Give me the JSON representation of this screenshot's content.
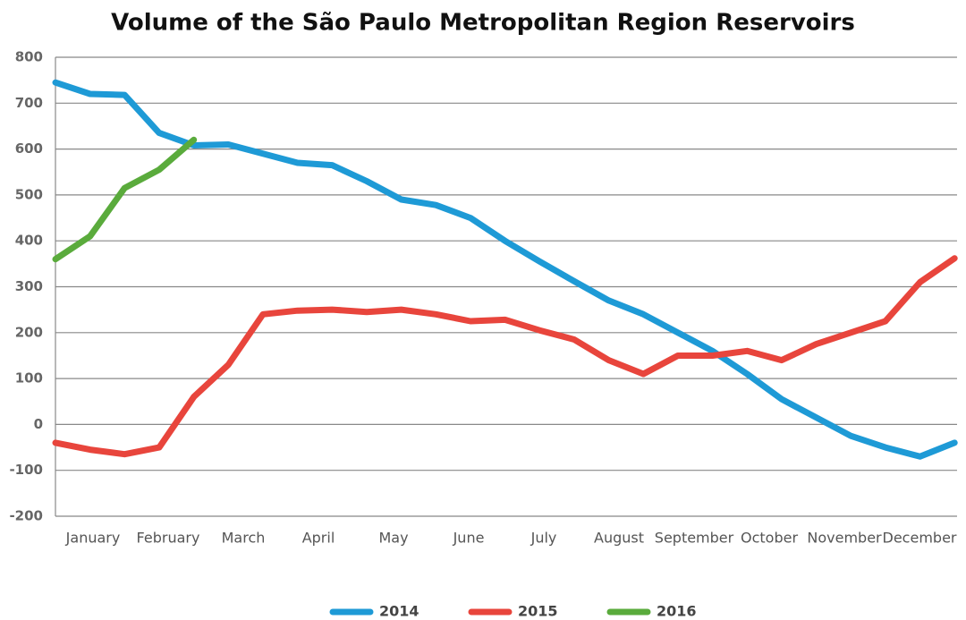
{
  "chart_data": {
    "type": "line",
    "title": "Volume of the São Paulo Metropolitan Region Reservoirs",
    "categories": [
      "January",
      "February",
      "March",
      "April",
      "May",
      "June",
      "July",
      "August",
      "September",
      "October",
      "November",
      "December"
    ],
    "x": [
      0,
      14,
      28,
      42,
      56,
      70,
      84,
      98,
      112,
      126,
      140,
      154,
      168,
      182,
      196,
      210,
      224,
      238,
      252,
      266,
      280,
      294,
      308,
      322,
      336,
      350,
      364
    ],
    "xlim": [
      0,
      365
    ],
    "series": [
      {
        "name": "2014",
        "color": "#1e9ad6",
        "values": [
          745,
          720,
          718,
          635,
          608,
          610,
          590,
          570,
          565,
          530,
          490,
          478,
          450,
          400,
          355,
          312,
          270,
          240,
          200,
          160,
          110,
          55,
          15,
          -25,
          -50,
          -70,
          -40
        ]
      },
      {
        "name": "2015",
        "color": "#e8453c",
        "values": [
          -40,
          -55,
          -65,
          -50,
          60,
          130,
          240,
          248,
          250,
          245,
          250,
          240,
          225,
          228,
          205,
          185,
          140,
          110,
          150,
          150,
          160,
          140,
          175,
          200,
          225,
          310,
          362
        ]
      },
      {
        "name": "2016",
        "color": "#5aab3c",
        "values": [
          360,
          410,
          515,
          555,
          620,
          null,
          null,
          null,
          null,
          null,
          null,
          null,
          null,
          null,
          null,
          null,
          null,
          null,
          null,
          null,
          null,
          null,
          null,
          null,
          null,
          null,
          null
        ]
      }
    ],
    "ylim": [
      -200,
      800
    ],
    "yticks": [
      -200,
      -100,
      0,
      100,
      200,
      300,
      400,
      500,
      600,
      700,
      800
    ],
    "grid": true,
    "legend": "bottom"
  }
}
